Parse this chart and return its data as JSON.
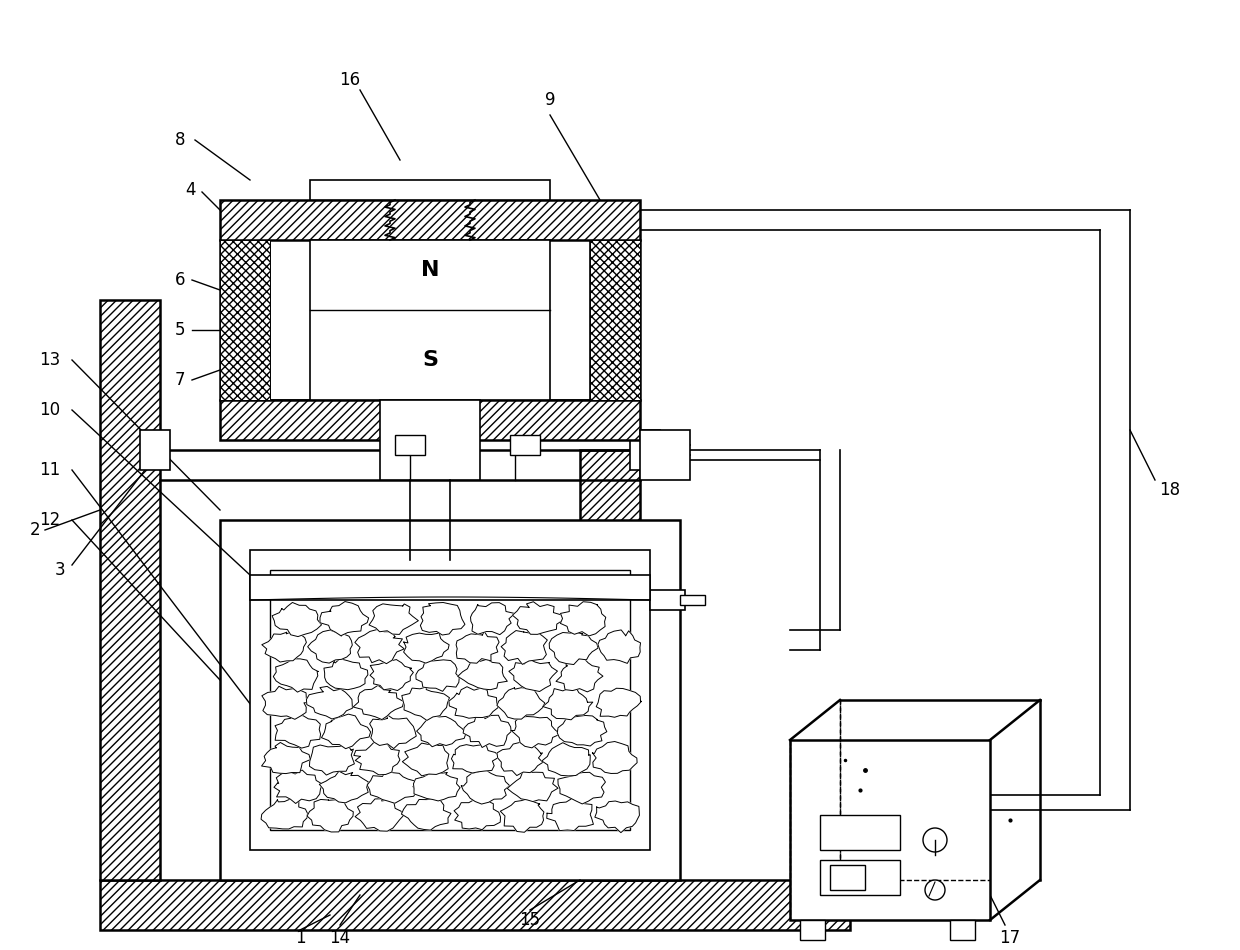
{
  "bg_color": "#ffffff",
  "line_color": "#000000",
  "figsize": [
    12.4,
    9.5
  ],
  "lw_main": 1.8,
  "lw_thin": 1.2,
  "label_fontsize": 12,
  "ns_fontsize": 16
}
